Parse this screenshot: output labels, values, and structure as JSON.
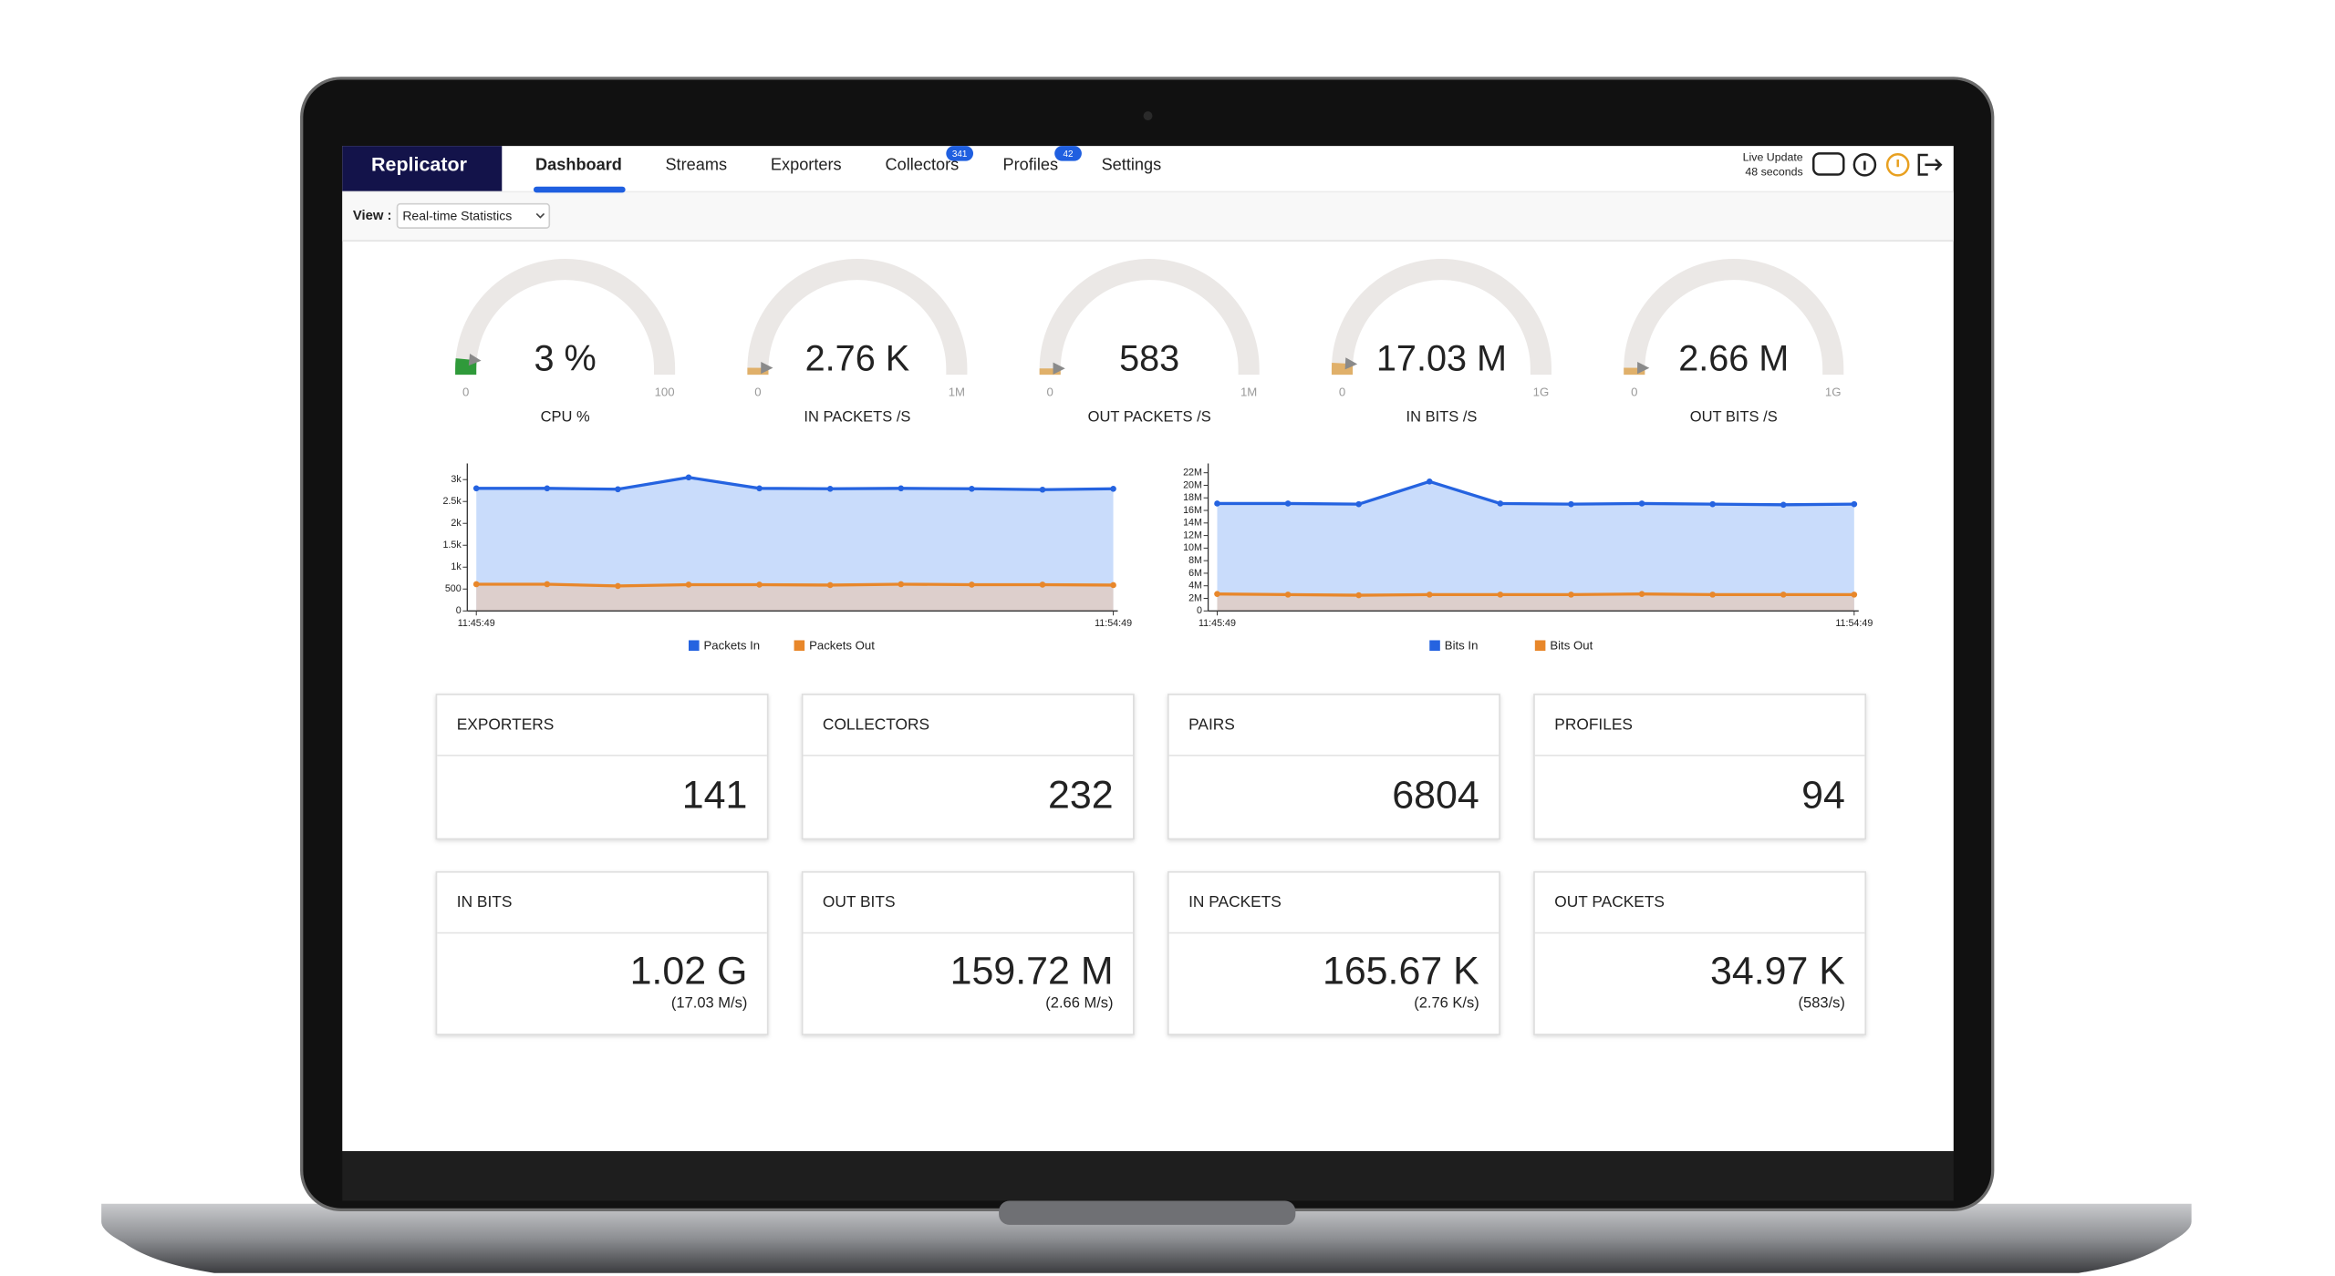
{
  "nav": {
    "brand": "Replicator",
    "tabs": [
      {
        "label": "Dashboard"
      },
      {
        "label": "Streams"
      },
      {
        "label": "Exporters"
      },
      {
        "label": "Collectors",
        "badge": 341
      },
      {
        "label": "Profiles",
        "badge": 42
      },
      {
        "label": "Settings"
      }
    ],
    "live_update": "Live Update",
    "live_update_time": "48 seconds"
  },
  "view": {
    "label": "View :",
    "selected": "Real-time Statistics"
  },
  "gauges": [
    {
      "value": {
        "value": 3,
        "label": "3 %"
      },
      "min": 0,
      "max": 100,
      "label": "CPU %",
      "color": "#2f9a3a"
    },
    {
      "value": {
        "value": 2760,
        "label": "2.76 K"
      },
      "min": 0,
      "max": {
        "value": 1000000,
        "label": "1M"
      },
      "label": "IN PACKETS /S",
      "color": "#e0b06a"
    },
    {
      "value": 583,
      "min": 0,
      "max": {
        "value": 1000000,
        "label": "1M"
      },
      "label": "OUT PACKETS /S",
      "color": "#e0b06a"
    },
    {
      "value": {
        "value": 17030000,
        "label": "17.03 M"
      },
      "min": 0,
      "max": {
        "value": 1000000000,
        "label": "1G"
      },
      "label": "IN BITS /S",
      "color": "#e0b06a"
    },
    {
      "value": {
        "value": 2660000,
        "label": "2.66 M"
      },
      "min": 0,
      "max": {
        "value": 1000000000,
        "label": "1G"
      },
      "label": "OUT BITS /S",
      "color": "#e0b06a"
    }
  ],
  "charts": [
    {
      "type": "line",
      "categories": [
        "11:45:49",
        null,
        null,
        null,
        null,
        null,
        null,
        null,
        null,
        "11:54:49"
      ],
      "ylim": [
        0,
        3300
      ],
      "yticks": [
        0,
        500,
        {
          "value": 1000,
          "label": "1k"
        },
        {
          "value": 1500,
          "label": "1.5k"
        },
        {
          "value": 2000,
          "label": "2k"
        },
        {
          "value": 2500,
          "label": "2.5k"
        },
        {
          "value": 3000,
          "label": "3k"
        }
      ],
      "series": [
        {
          "name": "Packets In",
          "color": "#2563e0",
          "fill": "#c9dcfb",
          "values": [
            2800,
            2800,
            2780,
            3050,
            2800,
            2790,
            2800,
            2790,
            2770,
            2790
          ]
        },
        {
          "name": "Packets Out",
          "color": "#e8872a",
          "fill": "#ddcfcc",
          "values": [
            610,
            610,
            570,
            600,
            600,
            590,
            610,
            600,
            600,
            590
          ]
        }
      ]
    },
    {
      "type": "line",
      "categories": [
        "11:45:49",
        null,
        null,
        null,
        null,
        null,
        null,
        null,
        null,
        "11:54:49"
      ],
      "ylim": [
        0,
        23000000
      ],
      "yticks": [
        0,
        {
          "value": 2000000,
          "label": "2M"
        },
        {
          "value": 4000000,
          "label": "4M"
        },
        {
          "value": 6000000,
          "label": "6M"
        },
        {
          "value": 8000000,
          "label": "8M"
        },
        {
          "value": 10000000,
          "label": "10M"
        },
        {
          "value": 12000000,
          "label": "12M"
        },
        {
          "value": 14000000,
          "label": "14M"
        },
        {
          "value": 16000000,
          "label": "16M"
        },
        {
          "value": 18000000,
          "label": "18M"
        },
        {
          "value": 20000000,
          "label": "20M"
        },
        {
          "value": 22000000,
          "label": "22M"
        }
      ],
      "series": [
        {
          "name": "Bits In",
          "color": "#2563e0",
          "fill": "#c9dcfb",
          "values": [
            17100000,
            17100000,
            17000000,
            20600000,
            17100000,
            17000000,
            17100000,
            17000000,
            16900000,
            17000000
          ]
        },
        {
          "name": "Bits Out",
          "color": "#e8872a",
          "fill": "#ddcfcc",
          "values": [
            2700000,
            2600000,
            2500000,
            2600000,
            2600000,
            2600000,
            2700000,
            2600000,
            2600000,
            2600000
          ]
        }
      ]
    }
  ],
  "cards": [
    {
      "title": "EXPORTERS",
      "value": 141
    },
    {
      "title": "COLLECTORS",
      "value": 232
    },
    {
      "title": "PAIRS",
      "value": 6804
    },
    {
      "title": "PROFILES",
      "value": 94
    },
    {
      "title": "IN BITS",
      "value": "1.02 G",
      "rate": "(17.03 M/s)"
    },
    {
      "title": "OUT BITS",
      "value": "159.72 M",
      "rate": "(2.66 M/s)"
    },
    {
      "title": "IN PACKETS",
      "value": "165.67 K",
      "rate": "(2.76 K/s)"
    },
    {
      "title": "OUT PACKETS",
      "value": "34.97 K",
      "rate": "(583/s)"
    }
  ]
}
